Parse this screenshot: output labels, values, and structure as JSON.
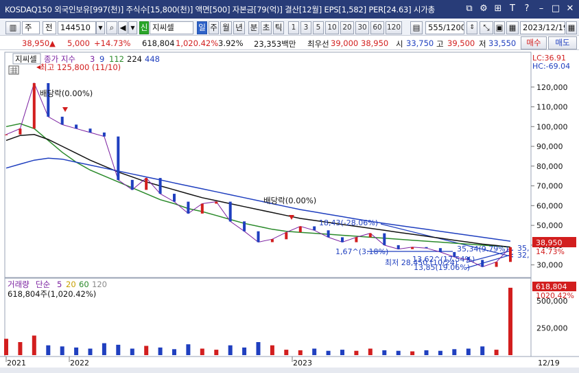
{
  "window": {
    "title": "KOSDAQ150 외국인보유[997(천)] 주식수[15,800(천)] 액면[500] 자본금[79(억)] 결산[12월] EPS[1,582] PER[24.63] 시가총"
  },
  "toolbar": {
    "type_select": "주",
    "market_select": "전",
    "code": "144510",
    "badge": "신",
    "name": "지씨셀",
    "periods": [
      "일",
      "주",
      "월",
      "년",
      "분",
      "초",
      "틱"
    ],
    "active_period": "일",
    "intervals": [
      "1",
      "3",
      "5",
      "10",
      "20",
      "30",
      "60",
      "120"
    ],
    "count": "555",
    "count_total": "/1200",
    "date": "2023/12/19"
  },
  "price": {
    "current": "38,950",
    "change": "5,000",
    "change_pct": "+14.73%",
    "volume": "618,804",
    "volume_pct": "1,020.42%",
    "turnover_pct": "3.92%",
    "amount": "23,353백만",
    "priority_label": "최우선",
    "ask": "39,000",
    "bid": "38,950",
    "open_label": "시",
    "open": "33,750",
    "high_label": "고",
    "high": "39,500",
    "low_label": "저",
    "low": "33,550",
    "buy_button": "매수",
    "sell_button": "매도"
  },
  "chart": {
    "stock_name": "지씨셀",
    "legend_title": "종가 지수",
    "ma_periods": [
      "3",
      "9",
      "112",
      "224",
      "448"
    ],
    "ma_colors": [
      "#7a1fa0",
      "#1f3fbf",
      "#2a8a2a",
      "#111111",
      "#1f3fbf"
    ],
    "lc_label": "LC:36.91",
    "hc_label": "HC:-69.04",
    "high_annotation": "최고 125,800 (11/10)",
    "low_annotation": "최저 28,450 (10/24)",
    "dividend1": "배당락(0.00%)",
    "dividend2": "배당락(0.00%)",
    "trend_label1": "1,67^(3.18%)",
    "trend_label2": "18,43(-28.06%)",
    "trend_label3": "13.62^(17.54%)",
    "trend_label4": "13,85(19.06%)",
    "trend_label5": "35,34(9.79%)",
    "right_label_35": "35,",
    "right_label_32": "32,",
    "current_price_tag": "38,950",
    "current_pct_tag": "14.73%",
    "y_ticks": [
      "120,000",
      "110,000",
      "100,000",
      "90,000",
      "80,000",
      "70,000",
      "60,000",
      "50,000",
      "40,000",
      "30,000"
    ],
    "volume_panel": {
      "title": "거래량",
      "ma_label": "단순",
      "ma_values": [
        "5",
        "20",
        "60",
        "120"
      ],
      "ma_colors": [
        "#7a1fa0",
        "#c8a000",
        "#2a8a2a",
        "#8a8a8a"
      ],
      "value_label": "618,804주(1,020.42%)",
      "tag_value": "618,804",
      "tag_pct": "1020.42%",
      "y_ticks": [
        "500,000",
        "250,000"
      ]
    },
    "x_labels": [
      "2021",
      "2022",
      "2023",
      "12/19"
    ]
  },
  "chart_data": {
    "type": "line",
    "title": "지씨셀",
    "x": [
      "2020-12",
      "2021-01",
      "2021-02",
      "2021-03",
      "2021-04",
      "2021-05",
      "2021-06",
      "2021-07",
      "2021-08",
      "2021-09",
      "2021-10",
      "2021-11",
      "2021-12",
      "2022-01",
      "2022-02",
      "2022-03",
      "2022-04",
      "2022-05",
      "2022-06",
      "2022-07",
      "2022-08",
      "2022-09",
      "2022-10",
      "2022-11",
      "2022-12",
      "2023-01",
      "2023-02",
      "2023-03",
      "2023-04",
      "2023-05",
      "2023-06",
      "2023-07",
      "2023-08",
      "2023-09",
      "2023-10",
      "2023-11",
      "2023-12"
    ],
    "series": [
      {
        "name": "종가",
        "values": [
          96000,
          99000,
          122000,
          105000,
          101000,
          99000,
          97000,
          95000,
          73000,
          68000,
          74000,
          66000,
          62000,
          56000,
          61000,
          62000,
          52000,
          47000,
          41500,
          43000,
          46500,
          49500,
          47500,
          44000,
          41500,
          44000,
          46000,
          40000,
          38000,
          39000,
          38500,
          36500,
          34000,
          32500,
          29000,
          31500,
          38950
        ]
      },
      {
        "name": "112",
        "values": [
          100000,
          101500,
          99000,
          93000,
          87000,
          82000,
          78000,
          75000,
          72000,
          69000,
          66000,
          63000,
          61000,
          58500,
          57000,
          55000,
          53000,
          51000,
          49500,
          48000,
          47000,
          46500,
          46000,
          45500,
          45000,
          44500,
          44000,
          43500,
          43000,
          42500,
          42000,
          41500,
          41000,
          40500,
          40000,
          39500,
          39000
        ]
      },
      {
        "name": "224",
        "values": [
          93000,
          95500,
          96000,
          93500,
          90000,
          86500,
          83000,
          80000,
          77000,
          74500,
          72000,
          70000,
          68000,
          66000,
          64000,
          62500,
          61000,
          59500,
          58000,
          56500,
          55000,
          53500,
          52500,
          51500,
          50500,
          49500,
          48500,
          47500,
          46500,
          45500,
          44500,
          43500,
          42500,
          41500,
          40500,
          39800,
          39000
        ]
      },
      {
        "name": "448",
        "values": [
          79000,
          81000,
          83000,
          84000,
          83500,
          82000,
          80500,
          79000,
          77500,
          76000,
          74500,
          73000,
          71500,
          70000,
          68500,
          67000,
          65500,
          64000,
          62500,
          61000,
          59500,
          58000,
          56800,
          55600,
          54400,
          53200,
          52000,
          51000,
          50000,
          49000,
          48000,
          47000,
          46000,
          45000,
          44000,
          43000,
          42000
        ]
      }
    ],
    "ylim": [
      25000,
      130000
    ],
    "y_scale": "linear",
    "grid": false,
    "xlabel": "",
    "ylabel": "",
    "volume": {
      "values": [
        150000,
        120000,
        180000,
        90000,
        80000,
        70000,
        60000,
        110000,
        95000,
        60000,
        85000,
        70000,
        55000,
        100000,
        60000,
        50000,
        90000,
        70000,
        120000,
        90000,
        50000,
        45000,
        60000,
        40000,
        50000,
        40000,
        60000,
        45000,
        40000,
        35000,
        45000,
        40000,
        55000,
        60000,
        80000,
        50000,
        618804
      ],
      "ylim": [
        0,
        650000
      ]
    }
  }
}
